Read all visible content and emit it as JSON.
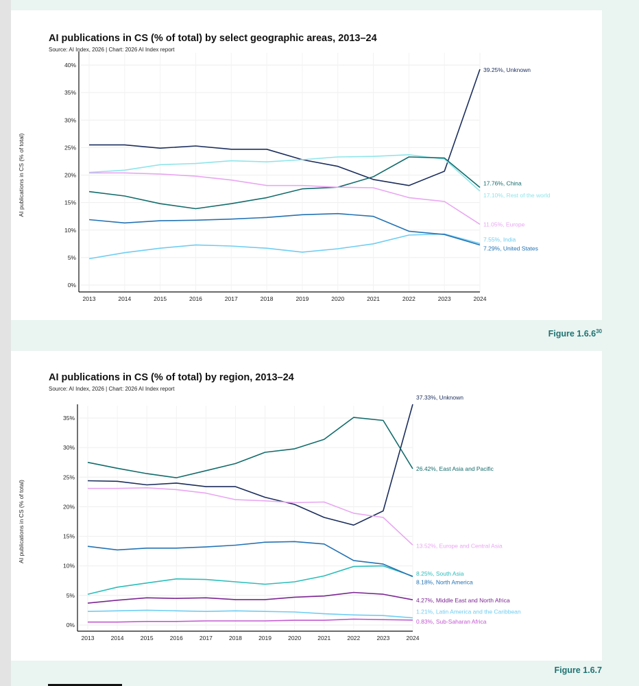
{
  "figures": [
    {
      "label": "Figure 1.6.6",
      "superscript": "30"
    },
    {
      "label": "Figure 1.6.7",
      "superscript": ""
    }
  ],
  "chart_data": [
    {
      "type": "line",
      "title": "AI publications in CS (% of total) by select geographic areas, 2013–24",
      "source": "Source: AI Index, 2026 | Chart: 2026 AI Index report",
      "xlabel": "",
      "ylabel": "AI publications in CS (% of total)",
      "x": [
        "2013",
        "2014",
        "2015",
        "2016",
        "2017",
        "2018",
        "2019",
        "2020",
        "2021",
        "2022",
        "2023",
        "2024"
      ],
      "ylim": [
        0,
        40
      ],
      "yticks": [
        0,
        5,
        10,
        15,
        20,
        25,
        30,
        35,
        40
      ],
      "ytick_suffix": "%",
      "grid": true,
      "legend": "end-of-line labels, right",
      "series": [
        {
          "name": "Unknown",
          "color": "#1B2D5C",
          "end_label": "39.25%, Unknown",
          "values": [
            25.5,
            25.5,
            24.9,
            25.3,
            24.7,
            24.7,
            22.8,
            21.6,
            19.2,
            18.1,
            20.7,
            39.25
          ]
        },
        {
          "name": "Rest of the world",
          "color": "#8EE5EA",
          "end_label": "17.10%, Rest of the world",
          "values": [
            20.5,
            20.9,
            21.9,
            22.1,
            22.6,
            22.4,
            22.8,
            23.3,
            23.4,
            23.7,
            22.9,
            17.1
          ]
        },
        {
          "name": "China",
          "color": "#126B6B",
          "end_label": "17.76%, China",
          "values": [
            17.0,
            16.2,
            14.8,
            13.9,
            14.8,
            15.9,
            17.5,
            17.8,
            19.7,
            23.3,
            23.1,
            17.76
          ]
        },
        {
          "name": "Europe",
          "color": "#E9A6F2",
          "end_label": "11.05%, Europe",
          "values": [
            20.4,
            20.4,
            20.2,
            19.8,
            19.1,
            18.1,
            18.1,
            17.8,
            17.7,
            15.9,
            15.2,
            11.05
          ]
        },
        {
          "name": "India",
          "color": "#6ECDF2",
          "end_label": "7.55%, India",
          "values": [
            4.8,
            5.9,
            6.7,
            7.3,
            7.1,
            6.7,
            6.0,
            6.6,
            7.5,
            9.1,
            9.3,
            7.55
          ]
        },
        {
          "name": "United States",
          "color": "#2372B3",
          "end_label": "7.29%, United States",
          "values": [
            11.9,
            11.3,
            11.7,
            11.8,
            12.0,
            12.3,
            12.8,
            13.0,
            12.5,
            9.8,
            9.2,
            7.29
          ]
        }
      ]
    },
    {
      "type": "line",
      "title": "AI publications in CS (% of total) by region, 2013–24",
      "source": "Source: AI Index, 2026 | Chart: 2026 AI Index report",
      "xlabel": "",
      "ylabel": "AI publications in CS (% of total)",
      "x": [
        "2013",
        "2014",
        "2015",
        "2016",
        "2017",
        "2018",
        "2019",
        "2020",
        "2021",
        "2022",
        "2023",
        "2024"
      ],
      "ylim": [
        0,
        35
      ],
      "yticks": [
        0,
        5,
        10,
        15,
        20,
        25,
        30,
        35
      ],
      "ytick_suffix": "%",
      "grid": true,
      "legend": "end-of-line labels, right",
      "series": [
        {
          "name": "Unknown",
          "color": "#1B2D5C",
          "end_label": "37.33%, Unknown",
          "values": [
            24.4,
            24.3,
            23.7,
            24.0,
            23.4,
            23.4,
            21.6,
            20.4,
            18.2,
            16.9,
            19.3,
            37.33
          ]
        },
        {
          "name": "East Asia and Pacific",
          "color": "#126B6B",
          "end_label": "26.42%, East Asia and Pacific",
          "values": [
            27.5,
            26.5,
            25.6,
            24.9,
            26.1,
            27.3,
            29.2,
            29.8,
            31.4,
            35.1,
            34.6,
            26.42
          ]
        },
        {
          "name": "Europe and Central Asia",
          "color": "#E9A6F2",
          "end_label": "13.52%, Europe and Central Asia",
          "values": [
            23.1,
            23.1,
            23.2,
            22.9,
            22.3,
            21.2,
            21.0,
            20.7,
            20.8,
            18.9,
            18.2,
            13.52
          ]
        },
        {
          "name": "South Asia",
          "color": "#2ABDBA",
          "end_label": "8.25%, South Asia",
          "values": [
            5.2,
            6.4,
            7.1,
            7.8,
            7.7,
            7.3,
            6.9,
            7.3,
            8.3,
            9.9,
            10.0,
            8.25
          ]
        },
        {
          "name": "North America",
          "color": "#2372B3",
          "end_label": "8.18%, North America",
          "values": [
            13.3,
            12.7,
            13.0,
            13.0,
            13.2,
            13.5,
            14.0,
            14.1,
            13.7,
            10.9,
            10.3,
            8.18
          ]
        },
        {
          "name": "Middle East and North Africa",
          "color": "#7B2591",
          "end_label": "4.27%, Middle East and North Africa",
          "values": [
            3.7,
            4.2,
            4.6,
            4.5,
            4.6,
            4.3,
            4.3,
            4.7,
            4.9,
            5.5,
            5.2,
            4.27
          ]
        },
        {
          "name": "Latin America and the Caribbean",
          "color": "#6ECDF2",
          "end_label": "1.21%, Latin America and the Caribbean",
          "values": [
            2.3,
            2.4,
            2.5,
            2.4,
            2.3,
            2.4,
            2.3,
            2.2,
            1.9,
            1.7,
            1.6,
            1.21
          ]
        },
        {
          "name": "Sub-Saharan Africa",
          "color": "#C358D0",
          "end_label": "0.83%, Sub-Saharan Africa",
          "values": [
            0.5,
            0.5,
            0.6,
            0.6,
            0.7,
            0.7,
            0.7,
            0.8,
            0.8,
            1.0,
            0.9,
            0.83
          ]
        }
      ]
    }
  ]
}
